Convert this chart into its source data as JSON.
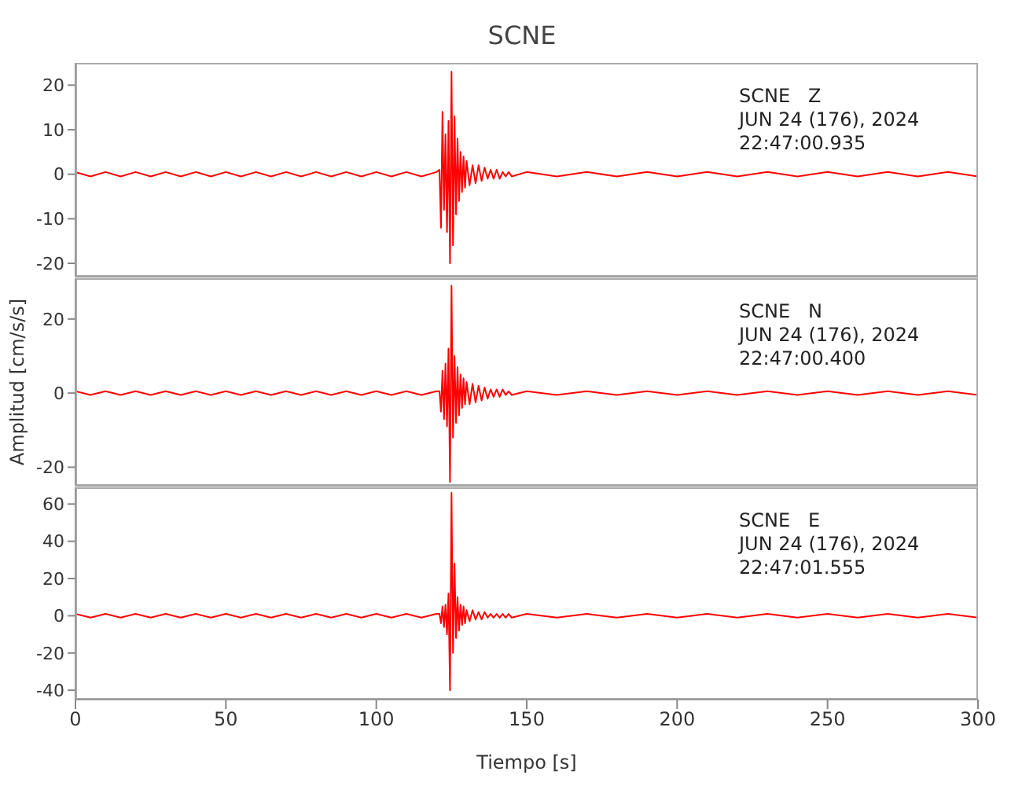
{
  "chart_data": [
    {
      "type": "line",
      "title": "SCNE",
      "annotations": [
        "SCNE   Z",
        "JUN 24 (176), 2024",
        "22:47:00.935"
      ],
      "tick_labels": "y",
      "xlim": [
        0,
        300
      ],
      "xticks": [
        0,
        50,
        100,
        150,
        200,
        250,
        300
      ],
      "ylim": [
        -23,
        25
      ],
      "yticks": [
        -20,
        -10,
        0,
        10,
        20
      ],
      "x": [
        0,
        5,
        10,
        15,
        20,
        25,
        30,
        35,
        40,
        45,
        50,
        55,
        60,
        65,
        70,
        75,
        80,
        85,
        90,
        95,
        100,
        105,
        110,
        115,
        120,
        121,
        121.5,
        122,
        122.5,
        123,
        123.5,
        124,
        124.5,
        125,
        125.5,
        126,
        126.5,
        127,
        127.5,
        128,
        128.5,
        129,
        129.5,
        130,
        131,
        132,
        133,
        134,
        135,
        136,
        137,
        138,
        139,
        140,
        141,
        142,
        143,
        144,
        145,
        150,
        160,
        170,
        180,
        190,
        200,
        210,
        220,
        230,
        240,
        250,
        260,
        270,
        280,
        290,
        300
      ],
      "series": [
        {
          "color": "#ff0000",
          "values": [
            0.5,
            -0.5,
            0.5,
            -0.5,
            0.5,
            -0.5,
            0.5,
            -0.5,
            0.5,
            -0.5,
            0.5,
            -0.5,
            0.5,
            -0.5,
            0.5,
            -0.5,
            0.5,
            -0.5,
            0.5,
            -0.5,
            0.5,
            -0.5,
            0.5,
            -0.5,
            0.5,
            1,
            -12,
            14,
            -8,
            9,
            -13,
            12,
            -20,
            23,
            -16,
            13,
            -9,
            8,
            -6,
            5,
            -4,
            4,
            -3,
            3,
            -2.5,
            2,
            -2,
            2,
            -1.5,
            1.5,
            -1,
            1,
            -1,
            1,
            -1,
            0.5,
            -0.5,
            0.5,
            -0.5,
            0.5,
            -0.5,
            0.5,
            -0.5,
            0.5,
            -0.5,
            0.5,
            -0.5,
            0.5,
            -0.5,
            0.5,
            -0.5,
            0.5,
            -0.5,
            0.5,
            -0.5
          ]
        }
      ]
    },
    {
      "type": "line",
      "ylabel": "Amplitud [cm/s/s]",
      "annotations": [
        "SCNE   N",
        "JUN 24 (176), 2024",
        "22:47:00.400"
      ],
      "tick_labels": "y",
      "xlim": [
        0,
        300
      ],
      "xticks": [
        0,
        50,
        100,
        150,
        200,
        250,
        300
      ],
      "ylim": [
        -25,
        31
      ],
      "yticks": [
        -20,
        0,
        20
      ],
      "x": [
        0,
        5,
        10,
        15,
        20,
        25,
        30,
        35,
        40,
        45,
        50,
        55,
        60,
        65,
        70,
        75,
        80,
        85,
        90,
        95,
        100,
        105,
        110,
        115,
        120,
        121,
        121.5,
        122,
        122.5,
        123,
        123.5,
        124,
        124.5,
        125,
        125.5,
        126,
        126.5,
        127,
        127.5,
        128,
        128.5,
        129,
        129.5,
        130,
        131,
        132,
        133,
        134,
        135,
        136,
        137,
        138,
        139,
        140,
        141,
        142,
        143,
        144,
        145,
        150,
        160,
        170,
        180,
        190,
        200,
        210,
        220,
        230,
        240,
        250,
        260,
        270,
        280,
        290,
        300
      ],
      "series": [
        {
          "color": "#ff0000",
          "values": [
            0.5,
            -0.5,
            0.5,
            -0.5,
            0.5,
            -0.5,
            0.5,
            -0.5,
            0.5,
            -0.5,
            0.5,
            -0.5,
            0.5,
            -0.5,
            0.5,
            -0.5,
            0.5,
            -0.5,
            0.5,
            -0.5,
            0.5,
            -0.5,
            0.5,
            -0.5,
            0.5,
            0.5,
            -5,
            6,
            -7,
            8,
            -9,
            12,
            -24,
            29,
            -12,
            10,
            -8,
            7,
            -6,
            5,
            -4,
            4,
            -3,
            3,
            -3,
            2.5,
            -2.5,
            2,
            -2,
            1.5,
            -1.5,
            1,
            -1,
            1,
            -1,
            1,
            -0.5,
            0.5,
            -0.5,
            0.5,
            -0.5,
            0.5,
            -0.5,
            0.5,
            -0.5,
            0.5,
            -0.5,
            0.5,
            -0.5,
            0.5,
            -0.5,
            0.5,
            -0.5,
            0.5,
            -0.5
          ]
        }
      ]
    },
    {
      "type": "line",
      "xlabel": "Tiempo [s]",
      "annotations": [
        "SCNE   E",
        "JUN 24 (176), 2024",
        "22:47:01.555"
      ],
      "xlim": [
        0,
        300
      ],
      "xticks": [
        0,
        50,
        100,
        150,
        200,
        250,
        300
      ],
      "ylim": [
        -45,
        69
      ],
      "yticks": [
        -40,
        -20,
        0,
        20,
        40,
        60
      ],
      "x": [
        0,
        5,
        10,
        15,
        20,
        25,
        30,
        35,
        40,
        45,
        50,
        55,
        60,
        65,
        70,
        75,
        80,
        85,
        90,
        95,
        100,
        105,
        110,
        115,
        120,
        121,
        121.5,
        122,
        122.5,
        123,
        123.5,
        124,
        124.5,
        125,
        125.5,
        126,
        126.5,
        127,
        127.5,
        128,
        128.5,
        129,
        129.5,
        130,
        131,
        132,
        133,
        134,
        135,
        136,
        137,
        138,
        139,
        140,
        141,
        142,
        143,
        144,
        145,
        150,
        160,
        170,
        180,
        190,
        200,
        210,
        220,
        230,
        240,
        250,
        260,
        270,
        280,
        290,
        300
      ],
      "series": [
        {
          "color": "#ff0000",
          "values": [
            1,
            -1,
            1,
            -1,
            1,
            -1,
            1,
            -1,
            1,
            -1,
            1,
            -1,
            1,
            -1,
            1,
            -1,
            1,
            -1,
            1,
            -1,
            1,
            -1,
            1,
            -1,
            1,
            1,
            -4,
            5,
            -6,
            6,
            -10,
            12,
            -40,
            66,
            -20,
            28,
            -12,
            10,
            -8,
            6,
            -5,
            5,
            -4,
            3,
            -3,
            3,
            -2,
            2,
            -2,
            2,
            -1,
            1,
            -1,
            1,
            -1,
            1,
            -1,
            1,
            -1,
            1,
            -1,
            1,
            -1,
            1,
            -1,
            1,
            -1,
            1,
            -1,
            1,
            -1,
            1,
            -1,
            1,
            -1
          ]
        }
      ]
    }
  ]
}
